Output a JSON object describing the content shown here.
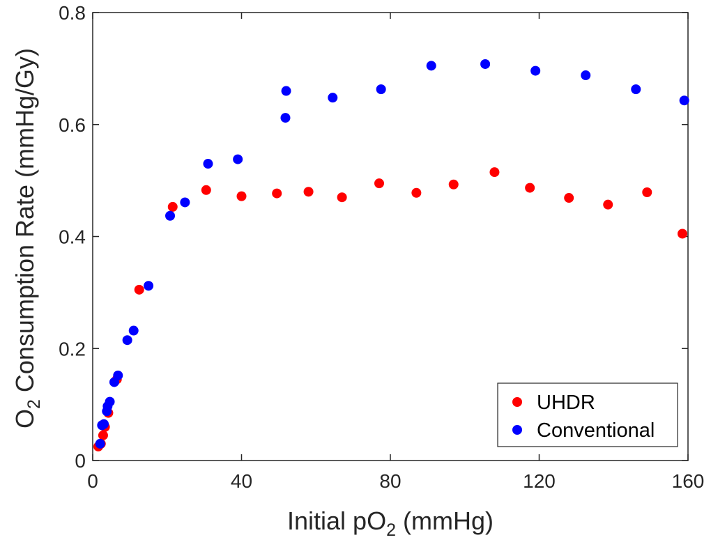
{
  "chart_data": {
    "type": "scatter",
    "xlabel": {
      "main": "Initial pO",
      "sub": "2",
      "tail": " (mmHg)"
    },
    "ylabel": {
      "main": "O",
      "sub": "2",
      "tail": " Consumption Rate (mmHg/Gy)"
    },
    "xlim": [
      0,
      160
    ],
    "ylim": [
      0,
      0.8
    ],
    "xticks": [
      0,
      40,
      80,
      120,
      160
    ],
    "xtick_labels": [
      "0",
      "40",
      "80",
      "120",
      "160"
    ],
    "yticks": [
      0,
      0.2,
      0.4,
      0.6,
      0.8
    ],
    "ytick_labels": [
      "0",
      "0.2",
      "0.4",
      "0.6",
      "0.8"
    ],
    "grid": false,
    "legend_position": "bottom-right",
    "series": [
      {
        "name": "UHDR",
        "color": "#ff0000",
        "points": [
          [
            1.5,
            0.025
          ],
          [
            2.2,
            0.03
          ],
          [
            2.8,
            0.045
          ],
          [
            3.3,
            0.06
          ],
          [
            4.2,
            0.085
          ],
          [
            6.5,
            0.145
          ],
          [
            12.5,
            0.305
          ],
          [
            21.5,
            0.453
          ],
          [
            30.5,
            0.483
          ],
          [
            40.0,
            0.472
          ],
          [
            49.5,
            0.477
          ],
          [
            58.0,
            0.48
          ],
          [
            67.0,
            0.47
          ],
          [
            77.0,
            0.495
          ],
          [
            87.0,
            0.478
          ],
          [
            97.0,
            0.493
          ],
          [
            108.0,
            0.515
          ],
          [
            117.5,
            0.487
          ],
          [
            128.0,
            0.469
          ],
          [
            138.5,
            0.457
          ],
          [
            149.0,
            0.479
          ],
          [
            158.5,
            0.405
          ]
        ]
      },
      {
        "name": "Conventional",
        "color": "#0000ff",
        "points": [
          [
            2.0,
            0.03
          ],
          [
            2.5,
            0.063
          ],
          [
            3.0,
            0.065
          ],
          [
            3.8,
            0.088
          ],
          [
            4.0,
            0.097
          ],
          [
            4.6,
            0.105
          ],
          [
            5.8,
            0.14
          ],
          [
            6.8,
            0.152
          ],
          [
            9.3,
            0.215
          ],
          [
            11.0,
            0.232
          ],
          [
            15.0,
            0.312
          ],
          [
            20.8,
            0.437
          ],
          [
            24.8,
            0.461
          ],
          [
            31.0,
            0.53
          ],
          [
            39.0,
            0.538
          ],
          [
            51.8,
            0.612
          ],
          [
            52.0,
            0.66
          ],
          [
            64.5,
            0.648
          ],
          [
            77.5,
            0.663
          ],
          [
            91.0,
            0.705
          ],
          [
            105.5,
            0.708
          ],
          [
            119.0,
            0.696
          ],
          [
            132.5,
            0.688
          ],
          [
            146.0,
            0.663
          ],
          [
            159.0,
            0.643
          ]
        ]
      }
    ]
  }
}
